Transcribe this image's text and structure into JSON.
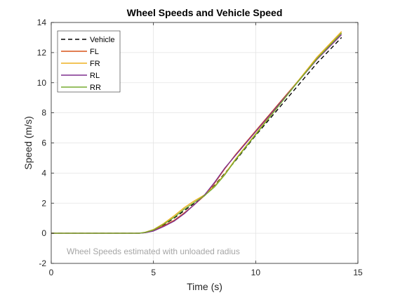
{
  "chart_data": {
    "type": "line",
    "title": "Wheel Speeds and Vehicle Speed",
    "xlabel": "Time (s)",
    "ylabel": "Speed (m/s)",
    "xlim": [
      0,
      15
    ],
    "ylim": [
      -2,
      14
    ],
    "xticks": [
      0,
      5,
      10,
      15
    ],
    "yticks": [
      -2,
      0,
      2,
      4,
      6,
      8,
      10,
      12,
      14
    ],
    "grid": true,
    "legend": "top-left",
    "annotation": "Wheel Speeds estimated with unloaded radius",
    "series": [
      {
        "name": "Vehicle",
        "color": "#000000",
        "dash": true,
        "x": [
          0,
          4.3,
          4.6,
          5.0,
          5.5,
          6.0,
          6.5,
          7.0,
          7.5,
          8.0,
          8.5,
          9.0,
          10.0,
          11.0,
          12.0,
          13.0,
          14.2
        ],
        "y": [
          0,
          0,
          0.05,
          0.2,
          0.55,
          1.0,
          1.5,
          2.0,
          2.5,
          3.2,
          4.0,
          4.8,
          6.5,
          8.1,
          9.7,
          11.3,
          13.0
        ]
      },
      {
        "name": "FL",
        "color": "#d95319",
        "dash": false,
        "x": [
          0,
          4.3,
          4.6,
          5.0,
          5.5,
          6.0,
          6.5,
          7.0,
          7.5,
          8.0,
          8.5,
          9.0,
          10.0,
          11.0,
          12.0,
          13.0,
          14.2
        ],
        "y": [
          0,
          0,
          0.05,
          0.2,
          0.5,
          0.85,
          1.35,
          1.9,
          2.5,
          3.35,
          4.3,
          5.2,
          6.8,
          8.4,
          10.0,
          11.6,
          13.3
        ]
      },
      {
        "name": "FR",
        "color": "#edb120",
        "dash": false,
        "x": [
          0,
          4.3,
          4.6,
          5.0,
          5.5,
          6.0,
          6.5,
          7.0,
          7.5,
          8.0,
          8.5,
          9.0,
          10.0,
          11.0,
          12.0,
          13.0,
          14.2
        ],
        "y": [
          0,
          0,
          0.07,
          0.25,
          0.65,
          1.15,
          1.7,
          2.15,
          2.55,
          3.15,
          3.95,
          4.9,
          6.6,
          8.3,
          10.0,
          11.7,
          13.4
        ]
      },
      {
        "name": "RL",
        "color": "#7e2f8e",
        "dash": false,
        "x": [
          0,
          4.3,
          4.6,
          5.0,
          5.5,
          6.0,
          6.5,
          7.0,
          7.5,
          8.0,
          8.5,
          9.0,
          10.0,
          11.0,
          12.0,
          13.0,
          14.2
        ],
        "y": [
          0,
          0,
          0.04,
          0.15,
          0.45,
          0.8,
          1.3,
          1.9,
          2.55,
          3.4,
          4.35,
          5.15,
          6.75,
          8.35,
          9.95,
          11.55,
          13.2
        ]
      },
      {
        "name": "RR",
        "color": "#77ac30",
        "dash": false,
        "x": [
          0,
          4.3,
          4.6,
          5.0,
          5.5,
          6.0,
          6.5,
          7.0,
          7.5,
          8.0,
          8.5,
          9.0,
          10.0,
          11.0,
          12.0,
          13.0,
          14.2
        ],
        "y": [
          0,
          0,
          0.06,
          0.22,
          0.6,
          1.05,
          1.6,
          2.05,
          2.5,
          3.1,
          3.9,
          4.85,
          6.55,
          8.25,
          9.95,
          11.6,
          13.3
        ]
      }
    ]
  }
}
